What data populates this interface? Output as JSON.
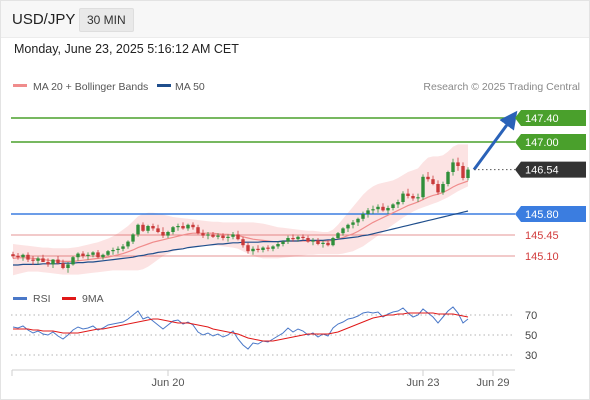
{
  "header": {
    "symbol": "USD/JPY",
    "interval": "30 MIN",
    "datetime": "Monday, June 23, 2025 5:16:12 AM CET"
  },
  "legend": {
    "ma20": {
      "label": "MA 20 + Bollinger Bands",
      "color": "#f08c8c"
    },
    "ma50": {
      "label": "MA 50",
      "color": "#1f4e8c"
    },
    "credit": "Research © 2025 Trading Central"
  },
  "levels": {
    "targets": [
      {
        "value": 147.4,
        "label": "147.40",
        "color": "#4aa02c"
      },
      {
        "value": 147.0,
        "label": "147.00",
        "color": "#4aa02c"
      }
    ],
    "pivot": {
      "value": 145.8,
      "label": "145.80",
      "color": "#3b7de0"
    },
    "supports": [
      {
        "value": 145.45,
        "label": "145.45",
        "color": "#d23c3c"
      },
      {
        "value": 145.1,
        "label": "145.10",
        "color": "#d23c3c"
      }
    ],
    "last_price": {
      "value": 146.54,
      "label": "146.54",
      "color": "#333333"
    }
  },
  "chart_data": {
    "type": "line",
    "price": {
      "ylim": [
        144.7,
        147.7
      ],
      "candles": [
        [
          145.13,
          145.17,
          145.06,
          145.1
        ],
        [
          145.1,
          145.15,
          145.04,
          145.08
        ],
        [
          145.08,
          145.14,
          145.02,
          145.12
        ],
        [
          145.12,
          145.16,
          145.0,
          145.04
        ],
        [
          145.04,
          145.1,
          144.95,
          145.02
        ],
        [
          145.02,
          145.09,
          144.96,
          145.06
        ],
        [
          145.06,
          145.12,
          145.0,
          145.0
        ],
        [
          145.0,
          145.06,
          144.92,
          144.96
        ],
        [
          144.96,
          145.05,
          144.9,
          145.04
        ],
        [
          145.04,
          145.1,
          144.96,
          144.98
        ],
        [
          144.98,
          145.04,
          144.88,
          144.9
        ],
        [
          144.9,
          145.0,
          144.82,
          144.96
        ],
        [
          144.96,
          145.1,
          144.94,
          145.08
        ],
        [
          145.08,
          145.16,
          145.02,
          145.14
        ],
        [
          145.14,
          145.18,
          145.06,
          145.1
        ],
        [
          145.1,
          145.16,
          145.04,
          145.12
        ],
        [
          145.12,
          145.18,
          145.08,
          145.16
        ],
        [
          145.16,
          145.2,
          145.06,
          145.08
        ],
        [
          145.08,
          145.14,
          145.04,
          145.12
        ],
        [
          145.12,
          145.2,
          145.1,
          145.18
        ],
        [
          145.18,
          145.24,
          145.12,
          145.2
        ],
        [
          145.2,
          145.26,
          145.14,
          145.22
        ],
        [
          145.22,
          145.3,
          145.18,
          145.26
        ],
        [
          145.26,
          145.36,
          145.22,
          145.34
        ],
        [
          145.34,
          145.48,
          145.3,
          145.46
        ],
        [
          145.46,
          145.64,
          145.42,
          145.62
        ],
        [
          145.62,
          145.66,
          145.5,
          145.52
        ],
        [
          145.52,
          145.62,
          145.48,
          145.6
        ],
        [
          145.6,
          145.64,
          145.52,
          145.56
        ],
        [
          145.56,
          145.62,
          145.48,
          145.5
        ],
        [
          145.5,
          145.58,
          145.4,
          145.44
        ],
        [
          145.44,
          145.52,
          145.4,
          145.5
        ],
        [
          145.5,
          145.6,
          145.46,
          145.58
        ],
        [
          145.58,
          145.64,
          145.52,
          145.6
        ],
        [
          145.6,
          145.66,
          145.54,
          145.56
        ],
        [
          145.56,
          145.64,
          145.52,
          145.62
        ],
        [
          145.62,
          145.66,
          145.54,
          145.58
        ],
        [
          145.58,
          145.62,
          145.46,
          145.48
        ],
        [
          145.48,
          145.54,
          145.4,
          145.44
        ],
        [
          145.44,
          145.5,
          145.38,
          145.46
        ],
        [
          145.46,
          145.5,
          145.4,
          145.42
        ],
        [
          145.42,
          145.48,
          145.38,
          145.44
        ],
        [
          145.44,
          145.48,
          145.36,
          145.4
        ],
        [
          145.4,
          145.46,
          145.34,
          145.42
        ],
        [
          145.42,
          145.5,
          145.38,
          145.46
        ],
        [
          145.46,
          145.52,
          145.36,
          145.38
        ],
        [
          145.38,
          145.42,
          145.24,
          145.28
        ],
        [
          145.28,
          145.32,
          145.14,
          145.18
        ],
        [
          145.18,
          145.26,
          145.12,
          145.22
        ],
        [
          145.22,
          145.28,
          145.16,
          145.2
        ],
        [
          145.2,
          145.26,
          145.16,
          145.24
        ],
        [
          145.24,
          145.28,
          145.18,
          145.22
        ],
        [
          145.22,
          145.28,
          145.18,
          145.26
        ],
        [
          145.26,
          145.34,
          145.22,
          145.3
        ],
        [
          145.3,
          145.36,
          145.26,
          145.34
        ],
        [
          145.34,
          145.44,
          145.3,
          145.4
        ],
        [
          145.4,
          145.46,
          145.34,
          145.38
        ],
        [
          145.38,
          145.44,
          145.34,
          145.42
        ],
        [
          145.42,
          145.46,
          145.36,
          145.4
        ],
        [
          145.4,
          145.44,
          145.32,
          145.34
        ],
        [
          145.34,
          145.4,
          145.28,
          145.36
        ],
        [
          145.36,
          145.4,
          145.28,
          145.3
        ],
        [
          145.3,
          145.36,
          145.24,
          145.32
        ],
        [
          145.32,
          145.36,
          145.26,
          145.28
        ],
        [
          145.28,
          145.42,
          145.26,
          145.4
        ],
        [
          145.4,
          145.5,
          145.38,
          145.48
        ],
        [
          145.48,
          145.58,
          145.44,
          145.56
        ],
        [
          145.56,
          145.64,
          145.5,
          145.62
        ],
        [
          145.62,
          145.7,
          145.56,
          145.66
        ],
        [
          145.66,
          145.74,
          145.6,
          145.72
        ],
        [
          145.72,
          145.84,
          145.68,
          145.8
        ],
        [
          145.8,
          145.9,
          145.74,
          145.86
        ],
        [
          145.86,
          145.94,
          145.8,
          145.88
        ],
        [
          145.88,
          145.96,
          145.82,
          145.92
        ],
        [
          145.92,
          145.98,
          145.84,
          145.86
        ],
        [
          145.86,
          145.94,
          145.8,
          145.9
        ],
        [
          145.9,
          145.98,
          145.86,
          145.96
        ],
        [
          145.96,
          146.04,
          145.9,
          146.0
        ],
        [
          146.0,
          146.18,
          145.96,
          146.14
        ],
        [
          146.14,
          146.22,
          146.06,
          146.1
        ],
        [
          146.1,
          146.14,
          146.02,
          146.06
        ],
        [
          146.06,
          146.14,
          146.0,
          146.08
        ],
        [
          146.08,
          146.46,
          146.04,
          146.42
        ],
        [
          146.42,
          146.5,
          146.34,
          146.38
        ],
        [
          146.38,
          146.44,
          146.28,
          146.3
        ],
        [
          146.3,
          146.36,
          146.12,
          146.16
        ],
        [
          146.16,
          146.34,
          146.12,
          146.3
        ],
        [
          146.3,
          146.52,
          146.26,
          146.5
        ],
        [
          146.5,
          146.72,
          146.44,
          146.66
        ],
        [
          146.66,
          146.74,
          146.52,
          146.6
        ],
        [
          146.6,
          146.66,
          146.36,
          146.4
        ],
        [
          146.4,
          146.58,
          146.36,
          146.54
        ]
      ],
      "ma20": [
        145.06,
        145.07,
        145.07,
        145.07,
        145.06,
        145.05,
        145.04,
        145.03,
        145.02,
        145.02,
        145.01,
        145.01,
        145.01,
        145.02,
        145.03,
        145.04,
        145.05,
        145.06,
        145.07,
        145.08,
        145.1,
        145.12,
        145.14,
        145.17,
        145.2,
        145.24,
        145.27,
        145.3,
        145.33,
        145.35,
        145.37,
        145.39,
        145.41,
        145.43,
        145.45,
        145.47,
        145.48,
        145.48,
        145.48,
        145.48,
        145.48,
        145.47,
        145.46,
        145.46,
        145.45,
        145.44,
        145.42,
        145.4,
        145.38,
        145.37,
        145.36,
        145.35,
        145.34,
        145.34,
        145.34,
        145.35,
        145.35,
        145.35,
        145.35,
        145.35,
        145.35,
        145.35,
        145.35,
        145.35,
        145.36,
        145.38,
        145.41,
        145.44,
        145.47,
        145.51,
        145.56,
        145.61,
        145.66,
        145.7,
        145.74,
        145.78,
        145.82,
        145.86,
        145.9,
        145.94,
        145.97,
        146.0,
        146.04,
        146.08,
        146.11,
        146.13,
        146.16,
        146.2,
        146.25,
        146.29,
        146.32,
        146.35
      ],
      "bb_upper": [
        145.3,
        145.29,
        145.28,
        145.27,
        145.26,
        145.25,
        145.24,
        145.24,
        145.23,
        145.23,
        145.23,
        145.23,
        145.24,
        145.25,
        145.27,
        145.29,
        145.31,
        145.33,
        145.36,
        145.39,
        145.43,
        145.48,
        145.54,
        145.6,
        145.68,
        145.76,
        145.8,
        145.82,
        145.82,
        145.81,
        145.79,
        145.77,
        145.75,
        145.74,
        145.73,
        145.72,
        145.71,
        145.7,
        145.69,
        145.68,
        145.67,
        145.67,
        145.66,
        145.66,
        145.66,
        145.66,
        145.66,
        145.66,
        145.66,
        145.65,
        145.64,
        145.62,
        145.6,
        145.58,
        145.57,
        145.56,
        145.55,
        145.54,
        145.53,
        145.52,
        145.52,
        145.51,
        145.5,
        145.5,
        145.54,
        145.62,
        145.72,
        145.82,
        145.92,
        146.02,
        146.12,
        146.2,
        146.26,
        146.3,
        146.32,
        146.34,
        146.36,
        146.4,
        146.45,
        146.5,
        146.53,
        146.56,
        146.66,
        146.74,
        146.76,
        146.76,
        146.78,
        146.84,
        146.92,
        146.96,
        146.96,
        146.96
      ],
      "bb_lower": [
        144.78,
        144.8,
        144.82,
        144.84,
        144.84,
        144.84,
        144.83,
        144.82,
        144.81,
        144.8,
        144.79,
        144.79,
        144.79,
        144.79,
        144.8,
        144.81,
        144.82,
        144.83,
        144.84,
        144.85,
        144.86,
        144.86,
        144.86,
        144.86,
        144.86,
        144.86,
        144.88,
        144.92,
        144.98,
        145.04,
        145.1,
        145.14,
        145.18,
        145.2,
        145.22,
        145.24,
        145.26,
        145.27,
        145.28,
        145.28,
        145.28,
        145.27,
        145.26,
        145.25,
        145.24,
        145.22,
        145.18,
        145.14,
        145.1,
        145.08,
        145.06,
        145.06,
        145.06,
        145.06,
        145.07,
        145.08,
        145.09,
        145.1,
        145.11,
        145.12,
        145.12,
        145.13,
        145.13,
        145.13,
        145.13,
        145.13,
        145.14,
        145.16,
        145.18,
        145.22,
        145.26,
        145.32,
        145.38,
        145.44,
        145.5,
        145.56,
        145.62,
        145.68,
        145.74,
        145.79,
        145.84,
        145.88,
        145.91,
        145.94,
        145.97,
        146.0,
        146.04,
        146.08,
        146.13,
        146.18,
        146.22,
        146.26
      ],
      "ma50": [
        144.95,
        144.95,
        144.96,
        144.96,
        144.96,
        144.96,
        144.97,
        144.97,
        144.97,
        144.97,
        144.98,
        144.98,
        144.98,
        144.99,
        144.99,
        145.0,
        145.0,
        145.01,
        145.02,
        145.03,
        145.04,
        145.05,
        145.06,
        145.07,
        145.08,
        145.1,
        145.11,
        145.13,
        145.14,
        145.16,
        145.17,
        145.18,
        145.2,
        145.21,
        145.22,
        145.24,
        145.25,
        145.26,
        145.27,
        145.28,
        145.29,
        145.3,
        145.3,
        145.31,
        145.32,
        145.32,
        145.33,
        145.33,
        145.33,
        145.33,
        145.34,
        145.34,
        145.34,
        145.34,
        145.35,
        145.35,
        145.35,
        145.35,
        145.36,
        145.36,
        145.36,
        145.36,
        145.36,
        145.37,
        145.37,
        145.38,
        145.39,
        145.4,
        145.41,
        145.42,
        145.44,
        145.45,
        145.47,
        145.49,
        145.51,
        145.53,
        145.55,
        145.57,
        145.59,
        145.61,
        145.63,
        145.65,
        145.67,
        145.69,
        145.71,
        145.73,
        145.75,
        145.77,
        145.79,
        145.81,
        145.83,
        145.85
      ],
      "forecast_target": 147.4
    },
    "rsi": {
      "ylim": [
        20,
        80
      ],
      "ticks": [
        70,
        50,
        30
      ],
      "legend": [
        {
          "name": "RSI",
          "color": "#4a78c8"
        },
        {
          "name": "9MA",
          "color": "#e01818"
        }
      ],
      "rsi": [
        58,
        57,
        59,
        55,
        52,
        54,
        51,
        50,
        53,
        49,
        46,
        50,
        55,
        58,
        56,
        57,
        59,
        55,
        57,
        60,
        61,
        62,
        63,
        66,
        70,
        74,
        66,
        68,
        64,
        60,
        56,
        60,
        64,
        65,
        61,
        63,
        60,
        53,
        50,
        52,
        49,
        51,
        48,
        50,
        54,
        46,
        40,
        36,
        42,
        41,
        44,
        43,
        46,
        49,
        52,
        57,
        53,
        56,
        54,
        50,
        52,
        48,
        51,
        49,
        57,
        61,
        63,
        66,
        67,
        69,
        72,
        73,
        72,
        73,
        68,
        71,
        73,
        74,
        77,
        72,
        68,
        70,
        76,
        72,
        68,
        62,
        68,
        74,
        78,
        72,
        62,
        66
      ],
      "ma9": [
        56,
        56,
        56,
        56,
        55,
        55,
        54,
        54,
        54,
        53,
        52,
        52,
        52,
        52,
        53,
        54,
        55,
        56,
        56,
        57,
        58,
        59,
        60,
        61,
        62,
        63,
        64,
        65,
        66,
        66,
        65,
        64,
        63,
        62,
        62,
        62,
        61,
        60,
        59,
        58,
        56,
        55,
        54,
        53,
        52,
        51,
        49,
        47,
        46,
        45,
        44,
        44,
        44,
        45,
        46,
        47,
        48,
        49,
        50,
        51,
        51,
        51,
        51,
        51,
        52,
        53,
        55,
        57,
        59,
        61,
        63,
        65,
        67,
        68,
        69,
        70,
        70,
        71,
        71,
        72,
        72,
        72,
        72,
        72,
        72,
        71,
        71,
        71,
        71,
        70,
        69,
        68
      ]
    },
    "x_ticks": [
      {
        "label": "Jun 20",
        "index": 31
      },
      {
        "label": "Jun 23",
        "index": 82
      },
      {
        "label": "Jun 29",
        "index": 96
      }
    ]
  }
}
